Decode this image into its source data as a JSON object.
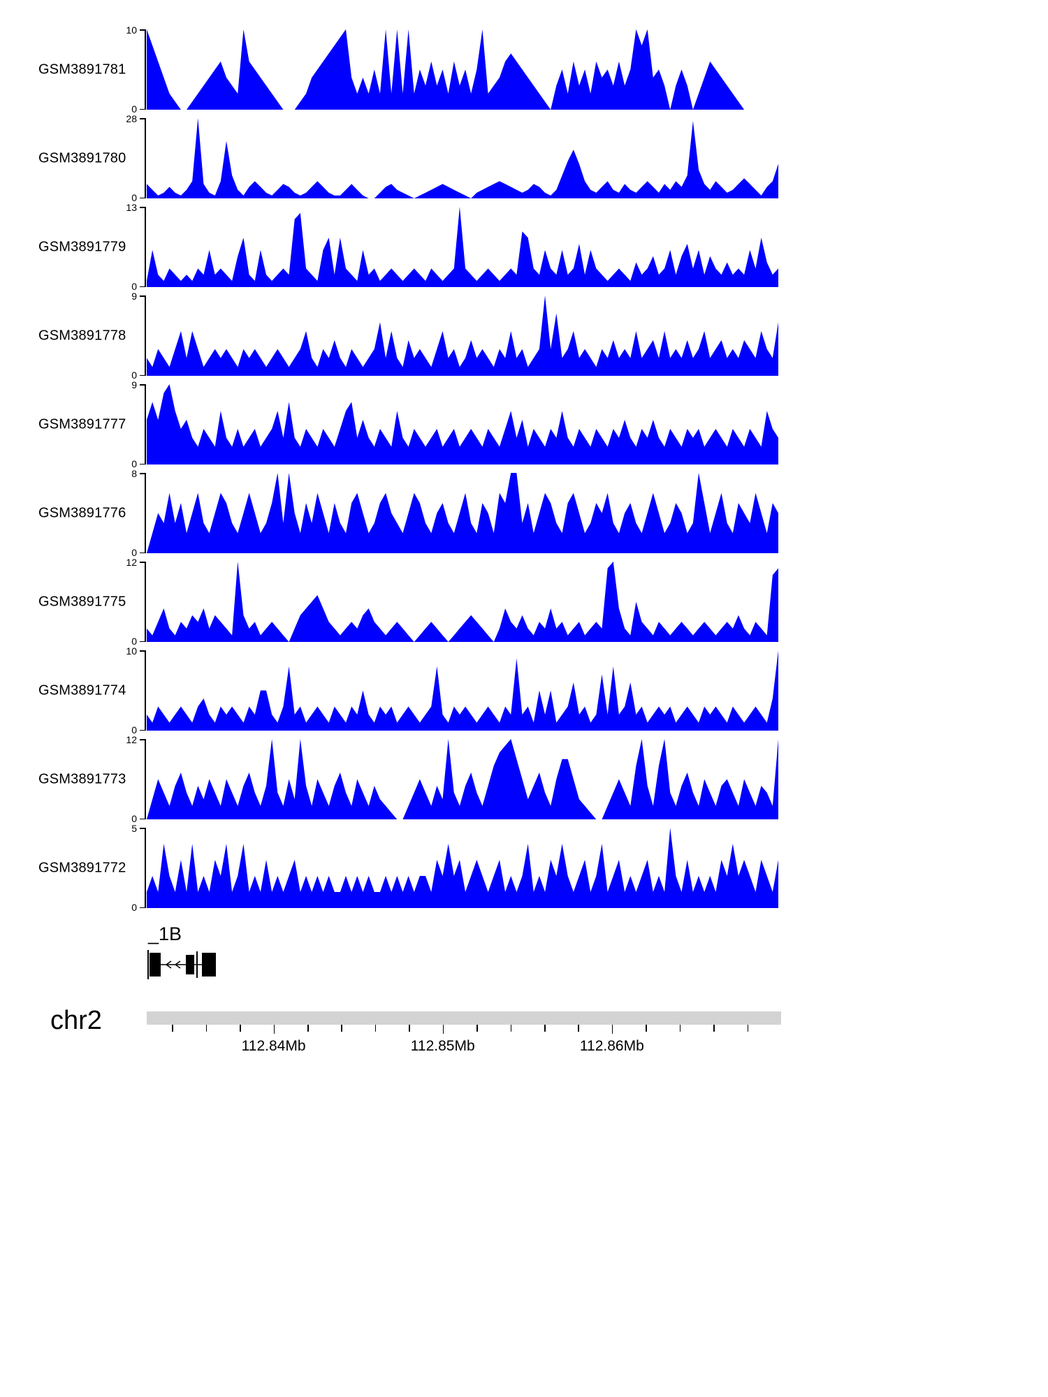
{
  "colors": {
    "signal": "#0000ff",
    "chromosome_bar": "#d3d3d3",
    "text": "#000000",
    "gene_model": "#000000"
  },
  "chart_data": {
    "type": "area",
    "title": "",
    "layout": "stacked genome browser coverage tracks",
    "x_axis": {
      "chromosome": "chr2",
      "start_mb": 112.8325,
      "end_mb": 112.87,
      "ticks_mb": [
        112.834,
        112.836,
        112.838,
        112.84,
        112.842,
        112.844,
        112.846,
        112.848,
        112.85,
        112.852,
        112.854,
        112.856,
        112.858,
        112.86,
        112.862,
        112.864,
        112.866,
        112.868
      ],
      "major_ticks": [
        {
          "mb": 112.84,
          "label": "112.84Mb"
        },
        {
          "mb": 112.85,
          "label": "112.85Mb"
        },
        {
          "mb": 112.86,
          "label": "112.86Mb"
        }
      ]
    },
    "gene_annotation": {
      "label": "_1B",
      "strand": "reverse",
      "exon_count": 3
    },
    "series": [
      {
        "name": "GSM3891781",
        "ylim": [
          0,
          10
        ],
        "values": [
          10,
          8,
          6,
          4,
          2,
          1,
          0,
          0,
          1,
          2,
          3,
          4,
          5,
          6,
          4,
          3,
          2,
          10,
          6,
          5,
          4,
          3,
          2,
          1,
          0,
          0,
          0,
          1,
          2,
          4,
          5,
          6,
          7,
          8,
          9,
          10,
          4,
          2,
          4,
          2,
          5,
          2,
          10,
          2,
          10,
          2,
          10,
          2,
          5,
          3,
          6,
          3,
          5,
          2,
          6,
          3,
          5,
          2,
          5,
          10,
          2,
          3,
          4,
          6,
          7,
          6,
          5,
          4,
          3,
          2,
          1,
          0,
          3,
          5,
          2,
          6,
          3,
          5,
          2,
          6,
          4,
          5,
          3,
          6,
          3,
          5,
          10,
          8,
          10,
          4,
          5,
          3,
          0,
          3,
          5,
          3,
          0,
          2,
          4,
          6,
          5,
          4,
          3,
          2,
          1,
          0,
          0,
          0,
          0,
          0,
          0,
          0
        ]
      },
      {
        "name": "GSM3891780",
        "ylim": [
          0,
          28
        ],
        "values": [
          5,
          3,
          1,
          2,
          4,
          2,
          1,
          3,
          6,
          28,
          5,
          2,
          1,
          6,
          20,
          8,
          3,
          1,
          4,
          6,
          4,
          2,
          1,
          3,
          5,
          4,
          2,
          1,
          2,
          4,
          6,
          4,
          2,
          1,
          1,
          3,
          5,
          3,
          1,
          0,
          0,
          2,
          4,
          5,
          3,
          2,
          1,
          0,
          1,
          2,
          3,
          4,
          5,
          4,
          3,
          2,
          1,
          0,
          2,
          3,
          4,
          5,
          6,
          5,
          4,
          3,
          2,
          3,
          5,
          4,
          2,
          1,
          3,
          8,
          13,
          17,
          12,
          6,
          3,
          2,
          4,
          6,
          3,
          2,
          5,
          3,
          2,
          4,
          6,
          4,
          2,
          5,
          3,
          6,
          4,
          8,
          27,
          10,
          5,
          3,
          6,
          4,
          2,
          3,
          5,
          7,
          5,
          3,
          1,
          4,
          6,
          12
        ]
      },
      {
        "name": "GSM3891779",
        "ylim": [
          0,
          13
        ],
        "values": [
          1,
          6,
          2,
          1,
          3,
          2,
          1,
          2,
          1,
          3,
          2,
          6,
          2,
          3,
          2,
          1,
          5,
          8,
          2,
          1,
          6,
          2,
          1,
          2,
          3,
          2,
          11,
          12,
          3,
          2,
          1,
          6,
          8,
          2,
          8,
          3,
          2,
          1,
          6,
          2,
          3,
          1,
          2,
          3,
          2,
          1,
          2,
          3,
          2,
          1,
          3,
          2,
          1,
          2,
          3,
          13,
          3,
          2,
          1,
          2,
          3,
          2,
          1,
          2,
          3,
          2,
          9,
          8,
          3,
          2,
          6,
          3,
          2,
          6,
          2,
          3,
          7,
          2,
          6,
          3,
          2,
          1,
          2,
          3,
          2,
          1,
          4,
          2,
          3,
          5,
          2,
          3,
          6,
          2,
          5,
          7,
          3,
          6,
          2,
          5,
          3,
          2,
          4,
          2,
          3,
          2,
          6,
          3,
          8,
          4,
          2,
          3
        ]
      },
      {
        "name": "GSM3891778",
        "ylim": [
          0,
          9
        ],
        "values": [
          2,
          1,
          3,
          2,
          1,
          3,
          5,
          2,
          5,
          3,
          1,
          2,
          3,
          2,
          3,
          2,
          1,
          3,
          2,
          3,
          2,
          1,
          2,
          3,
          2,
          1,
          2,
          3,
          5,
          2,
          1,
          3,
          2,
          4,
          2,
          1,
          3,
          2,
          1,
          2,
          3,
          6,
          2,
          5,
          2,
          1,
          4,
          2,
          3,
          2,
          1,
          3,
          5,
          2,
          3,
          1,
          2,
          4,
          2,
          3,
          2,
          1,
          3,
          2,
          5,
          2,
          3,
          1,
          2,
          3,
          9,
          3,
          7,
          2,
          3,
          5,
          2,
          3,
          2,
          1,
          3,
          2,
          4,
          2,
          3,
          2,
          5,
          2,
          3,
          4,
          2,
          5,
          2,
          3,
          2,
          4,
          2,
          3,
          5,
          2,
          3,
          4,
          2,
          3,
          2,
          4,
          3,
          2,
          5,
          3,
          2,
          6
        ]
      },
      {
        "name": "GSM3891777",
        "ylim": [
          0,
          9
        ],
        "values": [
          5,
          7,
          5,
          8,
          9,
          6,
          4,
          5,
          3,
          2,
          4,
          3,
          2,
          6,
          3,
          2,
          4,
          2,
          3,
          4,
          2,
          3,
          4,
          6,
          3,
          7,
          3,
          2,
          4,
          3,
          2,
          4,
          3,
          2,
          4,
          6,
          7,
          3,
          5,
          3,
          2,
          4,
          3,
          2,
          6,
          3,
          2,
          4,
          3,
          2,
          3,
          4,
          2,
          3,
          4,
          2,
          3,
          4,
          3,
          2,
          4,
          3,
          2,
          4,
          6,
          3,
          5,
          2,
          4,
          3,
          2,
          4,
          3,
          6,
          3,
          2,
          4,
          3,
          2,
          4,
          3,
          2,
          4,
          3,
          5,
          3,
          2,
          4,
          3,
          5,
          3,
          2,
          4,
          3,
          2,
          4,
          3,
          4,
          2,
          3,
          4,
          3,
          2,
          4,
          3,
          2,
          4,
          3,
          2,
          6,
          4,
          3
        ]
      },
      {
        "name": "GSM3891776",
        "ylim": [
          0,
          8
        ],
        "values": [
          0,
          2,
          4,
          3,
          6,
          3,
          5,
          2,
          4,
          6,
          3,
          2,
          4,
          6,
          5,
          3,
          2,
          4,
          6,
          4,
          2,
          3,
          5,
          8,
          3,
          8,
          4,
          2,
          5,
          3,
          6,
          4,
          2,
          5,
          3,
          2,
          5,
          6,
          4,
          2,
          3,
          5,
          6,
          4,
          3,
          2,
          4,
          6,
          5,
          3,
          2,
          4,
          5,
          3,
          2,
          4,
          6,
          3,
          2,
          5,
          4,
          2,
          6,
          5,
          8,
          8,
          3,
          5,
          2,
          4,
          6,
          5,
          3,
          2,
          5,
          6,
          4,
          2,
          3,
          5,
          4,
          6,
          3,
          2,
          4,
          5,
          3,
          2,
          4,
          6,
          4,
          2,
          3,
          5,
          4,
          2,
          3,
          8,
          5,
          2,
          4,
          6,
          3,
          2,
          5,
          4,
          3,
          6,
          4,
          2,
          5,
          4
        ]
      },
      {
        "name": "GSM3891775",
        "ylim": [
          0,
          12
        ],
        "values": [
          2,
          1,
          3,
          5,
          2,
          1,
          3,
          2,
          4,
          3,
          5,
          2,
          4,
          3,
          2,
          1,
          12,
          4,
          2,
          3,
          1,
          2,
          3,
          2,
          1,
          0,
          2,
          4,
          5,
          6,
          7,
          5,
          3,
          2,
          1,
          2,
          3,
          2,
          4,
          5,
          3,
          2,
          1,
          2,
          3,
          2,
          1,
          0,
          1,
          2,
          3,
          2,
          1,
          0,
          1,
          2,
          3,
          4,
          3,
          2,
          1,
          0,
          2,
          5,
          3,
          2,
          4,
          2,
          1,
          3,
          2,
          5,
          2,
          3,
          1,
          2,
          3,
          1,
          2,
          3,
          2,
          11,
          12,
          5,
          2,
          1,
          6,
          3,
          2,
          1,
          3,
          2,
          1,
          2,
          3,
          2,
          1,
          2,
          3,
          2,
          1,
          2,
          3,
          2,
          4,
          2,
          1,
          3,
          2,
          1,
          10,
          11
        ]
      },
      {
        "name": "GSM3891774",
        "ylim": [
          0,
          10
        ],
        "values": [
          2,
          1,
          3,
          2,
          1,
          2,
          3,
          2,
          1,
          3,
          4,
          2,
          1,
          3,
          2,
          3,
          2,
          1,
          3,
          2,
          5,
          5,
          2,
          1,
          3,
          8,
          2,
          3,
          1,
          2,
          3,
          2,
          1,
          3,
          2,
          1,
          3,
          2,
          5,
          2,
          1,
          3,
          2,
          3,
          1,
          2,
          3,
          2,
          1,
          2,
          3,
          8,
          2,
          1,
          3,
          2,
          3,
          2,
          1,
          2,
          3,
          2,
          1,
          3,
          2,
          9,
          2,
          3,
          1,
          5,
          2,
          5,
          1,
          2,
          3,
          6,
          2,
          3,
          1,
          2,
          7,
          2,
          8,
          2,
          3,
          6,
          2,
          3,
          1,
          2,
          3,
          2,
          3,
          1,
          2,
          3,
          2,
          1,
          3,
          2,
          3,
          2,
          1,
          3,
          2,
          1,
          2,
          3,
          2,
          1,
          4,
          10
        ]
      },
      {
        "name": "GSM3891773",
        "ylim": [
          0,
          12
        ],
        "values": [
          0,
          3,
          6,
          4,
          2,
          5,
          7,
          4,
          2,
          5,
          3,
          6,
          4,
          2,
          6,
          4,
          2,
          5,
          7,
          4,
          2,
          5,
          12,
          4,
          2,
          6,
          3,
          12,
          5,
          2,
          6,
          4,
          2,
          5,
          7,
          4,
          2,
          6,
          4,
          2,
          5,
          3,
          2,
          1,
          0,
          0,
          2,
          4,
          6,
          4,
          2,
          5,
          3,
          12,
          4,
          2,
          5,
          7,
          4,
          2,
          5,
          8,
          10,
          11,
          12,
          9,
          6,
          3,
          5,
          7,
          4,
          2,
          6,
          9,
          9,
          6,
          3,
          2,
          1,
          0,
          0,
          2,
          4,
          6,
          4,
          2,
          8,
          12,
          5,
          2,
          8,
          12,
          4,
          2,
          5,
          7,
          4,
          2,
          6,
          4,
          2,
          5,
          6,
          4,
          2,
          6,
          4,
          2,
          5,
          4,
          2,
          12
        ]
      },
      {
        "name": "GSM3891772",
        "ylim": [
          0,
          5
        ],
        "values": [
          1,
          2,
          1,
          4,
          2,
          1,
          3,
          1,
          4,
          1,
          2,
          1,
          3,
          2,
          4,
          1,
          2,
          4,
          1,
          2,
          1,
          3,
          1,
          2,
          1,
          2,
          3,
          1,
          2,
          1,
          2,
          1,
          2,
          1,
          1,
          2,
          1,
          2,
          1,
          2,
          1,
          1,
          2,
          1,
          2,
          1,
          2,
          1,
          2,
          2,
          1,
          3,
          2,
          4,
          2,
          3,
          1,
          2,
          3,
          2,
          1,
          2,
          3,
          1,
          2,
          1,
          2,
          4,
          1,
          2,
          1,
          3,
          2,
          4,
          2,
          1,
          2,
          3,
          1,
          2,
          4,
          1,
          2,
          3,
          1,
          2,
          1,
          2,
          3,
          1,
          2,
          1,
          5,
          2,
          1,
          3,
          1,
          2,
          1,
          2,
          1,
          3,
          2,
          4,
          2,
          3,
          2,
          1,
          3,
          2,
          1,
          3
        ]
      }
    ]
  }
}
